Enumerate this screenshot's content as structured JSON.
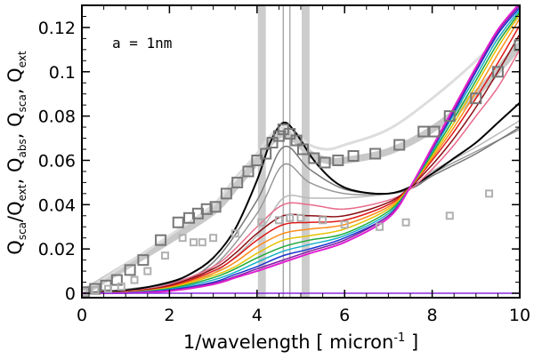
{
  "chart_data": {
    "type": "line",
    "title": "",
    "annotation": "a = 1nm",
    "xlabel": "1/wavelength [ micron⁻¹ ]",
    "ylabel": "Q_sca/Q_ext,  Q_abs,  Q_sca,  Q_ext",
    "xlim": [
      0,
      10
    ],
    "ylim": [
      -0.002,
      0.13
    ],
    "x_ticks": [
      0,
      2,
      4,
      6,
      8,
      10
    ],
    "y_ticks": [
      0,
      0.02,
      0.04,
      0.06,
      0.08,
      0.1,
      0.12
    ],
    "x_tick_labels": [
      "0",
      "2",
      "4",
      "6",
      "8",
      "10"
    ],
    "y_tick_labels": [
      "0",
      "0.02",
      "0.04",
      "0.06",
      "0.08",
      "0.1",
      "0.12"
    ],
    "grid": false,
    "vertical_bands": [
      {
        "x": [
          4.02,
          4.2
        ],
        "color": "#cccccc"
      },
      {
        "x": [
          5.02,
          5.2
        ],
        "color": "#cccccc"
      }
    ],
    "vertical_lines": [
      {
        "x": 4.6,
        "color": "#aaaaaa"
      },
      {
        "x": 4.75,
        "color": "#aaaaaa"
      }
    ],
    "series": [
      {
        "name": "extinction curve band",
        "color": "#c8c8c8",
        "width": 8,
        "x": [
          0,
          1,
          2,
          3,
          3.5,
          4,
          4.3,
          4.6,
          4.9,
          5.2,
          5.6,
          6,
          7,
          8,
          9,
          10
        ],
        "y": [
          0.0,
          0.012,
          0.024,
          0.037,
          0.048,
          0.06,
          0.068,
          0.072,
          0.069,
          0.063,
          0.06,
          0.06,
          0.064,
          0.074,
          0.09,
          0.112
        ]
      },
      {
        "name": "extinction upper envelope",
        "color": "#dddddd",
        "width": 3,
        "x": [
          0,
          1,
          2,
          3,
          3.5,
          4,
          4.3,
          4.6,
          4.9,
          5.2,
          5.6,
          6,
          7,
          8,
          9,
          10
        ],
        "y": [
          0.0,
          0.013,
          0.026,
          0.04,
          0.052,
          0.063,
          0.071,
          0.075,
          0.072,
          0.067,
          0.065,
          0.067,
          0.074,
          0.088,
          0.105,
          0.125
        ]
      },
      {
        "name": "Q_sca/Q_ext light",
        "color": "#b8b8b8",
        "width": 1.5,
        "x": [
          0,
          2,
          3,
          4,
          4.6,
          5.2,
          6,
          7,
          7.6,
          8,
          9,
          10
        ],
        "y": [
          0,
          0.003,
          0.009,
          0.026,
          0.043,
          0.043,
          0.043,
          0.045,
          0.048,
          0.055,
          0.066,
          0.078
        ]
      },
      {
        "name": "model gray 3",
        "color": "#999999",
        "width": 1.5,
        "x": [
          0,
          2,
          3,
          4,
          4.6,
          5.2,
          6,
          7,
          7.6,
          8,
          9,
          10
        ],
        "y": [
          0,
          0.004,
          0.012,
          0.036,
          0.058,
          0.05,
          0.045,
          0.045,
          0.048,
          0.054,
          0.064,
          0.074
        ]
      },
      {
        "name": "model gray 2",
        "color": "#777777",
        "width": 1.5,
        "x": [
          0,
          2,
          3,
          4,
          4.6,
          5.2,
          6,
          7,
          7.6,
          8,
          9,
          10
        ],
        "y": [
          0,
          0.0045,
          0.014,
          0.042,
          0.066,
          0.056,
          0.047,
          0.045,
          0.048,
          0.053,
          0.063,
          0.075
        ]
      },
      {
        "name": "model black",
        "color": "#000000",
        "width": 2,
        "x": [
          0,
          1,
          2,
          2.5,
          3,
          3.5,
          4,
          4.3,
          4.6,
          4.9,
          5.3,
          5.8,
          6.3,
          7,
          7.5,
          8,
          8.5,
          9,
          9.5,
          10
        ],
        "y": [
          0,
          0.0012,
          0.005,
          0.009,
          0.016,
          0.029,
          0.051,
          0.068,
          0.077,
          0.072,
          0.06,
          0.05,
          0.046,
          0.045,
          0.048,
          0.054,
          0.061,
          0.068,
          0.077,
          0.086
        ]
      },
      {
        "name": "model pink",
        "color": "#e86b8c",
        "width": 1.5,
        "x": [
          0,
          1,
          2,
          3,
          3.5,
          4,
          4.6,
          5.2,
          6,
          7,
          7.5,
          8,
          8.5,
          9,
          9.5,
          10
        ],
        "y": [
          0,
          0.0008,
          0.004,
          0.012,
          0.02,
          0.03,
          0.04,
          0.04,
          0.038,
          0.042,
          0.047,
          0.056,
          0.067,
          0.08,
          0.093,
          0.11
        ]
      },
      {
        "name": "model dark red",
        "color": "#8b0e14",
        "width": 1.5,
        "x": [
          0,
          1,
          2,
          3,
          3.5,
          4,
          4.6,
          5.2,
          6,
          7,
          7.5,
          8,
          8.5,
          9,
          9.5,
          10
        ],
        "y": [
          0,
          0.0007,
          0.0035,
          0.011,
          0.018,
          0.027,
          0.035,
          0.035,
          0.035,
          0.041,
          0.048,
          0.058,
          0.07,
          0.084,
          0.1,
          0.117
        ]
      },
      {
        "name": "model red",
        "color": "#e01818",
        "width": 1.5,
        "x": [
          0,
          1,
          2,
          3,
          3.5,
          4,
          4.6,
          5.2,
          6,
          7,
          7.5,
          8,
          8.5,
          9,
          9.5,
          10
        ],
        "y": [
          0,
          0.0006,
          0.003,
          0.01,
          0.016,
          0.024,
          0.031,
          0.032,
          0.033,
          0.04,
          0.048,
          0.06,
          0.073,
          0.088,
          0.104,
          0.121
        ]
      },
      {
        "name": "model orange",
        "color": "#ff8c1a",
        "width": 1.5,
        "x": [
          0,
          1,
          2,
          3,
          3.5,
          4,
          4.6,
          5.2,
          6,
          7,
          7.5,
          8,
          8.5,
          9,
          9.5,
          10
        ],
        "y": [
          0,
          0.0005,
          0.0027,
          0.009,
          0.014,
          0.021,
          0.027,
          0.029,
          0.031,
          0.039,
          0.048,
          0.061,
          0.075,
          0.091,
          0.108,
          0.124
        ]
      },
      {
        "name": "model yellow",
        "color": "#e6c200",
        "width": 1.5,
        "x": [
          0,
          1,
          2,
          3,
          3.5,
          4,
          4.6,
          5.2,
          6,
          7,
          7.5,
          8,
          8.5,
          9,
          9.5,
          10
        ],
        "y": [
          0,
          0.0004,
          0.0024,
          0.008,
          0.012,
          0.018,
          0.024,
          0.026,
          0.029,
          0.038,
          0.048,
          0.062,
          0.077,
          0.094,
          0.111,
          0.126
        ]
      },
      {
        "name": "model green",
        "color": "#1faa3a",
        "width": 1.5,
        "x": [
          0,
          1,
          2,
          3,
          3.5,
          4,
          4.6,
          5.2,
          6,
          7,
          7.5,
          8,
          8.5,
          9,
          9.5,
          10
        ],
        "y": [
          0,
          0.0003,
          0.0021,
          0.007,
          0.011,
          0.016,
          0.021,
          0.024,
          0.027,
          0.037,
          0.048,
          0.063,
          0.079,
          0.096,
          0.113,
          0.127
        ]
      },
      {
        "name": "model cyan",
        "color": "#15b0c8",
        "width": 1.5,
        "x": [
          0,
          1,
          2,
          3,
          3.5,
          4,
          4.6,
          5.2,
          6,
          7,
          7.5,
          8,
          8.5,
          9,
          9.5,
          10
        ],
        "y": [
          0,
          0.0003,
          0.0018,
          0.006,
          0.0095,
          0.014,
          0.019,
          0.022,
          0.026,
          0.036,
          0.048,
          0.064,
          0.081,
          0.098,
          0.115,
          0.128
        ]
      },
      {
        "name": "model blue",
        "color": "#1a35d0",
        "width": 1.5,
        "x": [
          0,
          1,
          2,
          3,
          3.5,
          4,
          4.6,
          5.2,
          6,
          7,
          7.5,
          8,
          8.5,
          9,
          9.5,
          10
        ],
        "y": [
          0,
          0.0002,
          0.0015,
          0.005,
          0.0085,
          0.012,
          0.017,
          0.02,
          0.025,
          0.035,
          0.048,
          0.065,
          0.082,
          0.1,
          0.117,
          0.129
        ]
      },
      {
        "name": "model purple",
        "color": "#7a1fa0",
        "width": 1.5,
        "x": [
          0,
          1,
          2,
          3,
          3.5,
          4,
          4.6,
          5.2,
          6,
          7,
          7.5,
          8,
          8.5,
          9,
          9.5,
          10
        ],
        "y": [
          0,
          0.0002,
          0.0012,
          0.0045,
          0.0075,
          0.011,
          0.015,
          0.019,
          0.024,
          0.035,
          0.048,
          0.065,
          0.083,
          0.101,
          0.118,
          0.13
        ]
      },
      {
        "name": "model magenta",
        "color": "#e020d0",
        "width": 2,
        "x": [
          0,
          1,
          2,
          3,
          3.5,
          4,
          4.6,
          5.2,
          6,
          7,
          7.5,
          8,
          8.5,
          9,
          9.5,
          10
        ],
        "y": [
          0,
          0.0001,
          0.001,
          0.004,
          0.007,
          0.01,
          0.014,
          0.018,
          0.023,
          0.034,
          0.048,
          0.066,
          0.084,
          0.102,
          0.119,
          0.131
        ]
      },
      {
        "name": "baseline",
        "color": "#8a2be2",
        "width": 1.5,
        "x": [
          0,
          10
        ],
        "y": [
          0,
          0
        ]
      }
    ],
    "scatter": [
      {
        "name": "observed extinction",
        "marker": "square",
        "color": "#777777",
        "size": 11,
        "x": [
          0.05,
          0.3,
          0.55,
          0.8,
          1.1,
          1.4,
          1.8,
          2.2,
          2.45,
          2.65,
          2.85,
          3.05,
          3.3,
          3.55,
          3.8,
          4.0,
          4.2,
          4.35,
          4.5,
          4.6,
          4.75,
          4.9,
          5.05,
          5.3,
          5.55,
          5.85,
          6.2,
          6.7,
          7.25,
          7.8,
          8.05,
          8.4,
          9.0,
          9.5,
          10.0
        ],
        "y": [
          0.0005,
          0.002,
          0.0035,
          0.006,
          0.0105,
          0.015,
          0.024,
          0.032,
          0.034,
          0.036,
          0.038,
          0.039,
          0.045,
          0.05,
          0.055,
          0.06,
          0.063,
          0.068,
          0.071,
          0.074,
          0.072,
          0.069,
          0.065,
          0.061,
          0.059,
          0.06,
          0.062,
          0.063,
          0.067,
          0.073,
          0.073,
          0.08,
          0.088,
          0.1,
          0.112
        ]
      },
      {
        "name": "observed ratio",
        "marker": "square",
        "color": "#b0b0b0",
        "size": 7,
        "x": [
          0.05,
          0.3,
          0.6,
          0.9,
          1.2,
          1.5,
          1.9,
          2.3,
          2.55,
          2.75,
          3.0,
          3.5,
          4.1,
          4.5,
          4.75,
          5.0,
          5.5,
          6.0,
          6.8,
          7.4,
          8.4,
          9.3
        ],
        "y": [
          0.0004,
          0.0015,
          0.002,
          0.003,
          0.006,
          0.01,
          0.017,
          0.025,
          0.023,
          0.023,
          0.025,
          0.027,
          0.032,
          0.033,
          0.034,
          0.034,
          0.033,
          0.031,
          0.03,
          0.032,
          0.035,
          0.045
        ]
      }
    ]
  }
}
